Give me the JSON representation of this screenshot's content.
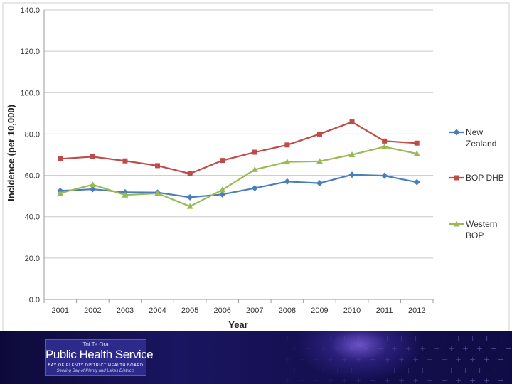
{
  "chart_data": {
    "type": "line",
    "title": "",
    "xlabel": "Year",
    "ylabel": "Incidence (per 10,000)",
    "categories": [
      "2001",
      "2002",
      "2003",
      "2004",
      "2005",
      "2006",
      "2007",
      "2008",
      "2009",
      "2010",
      "2011",
      "2012"
    ],
    "y_ticks": [
      "0.0",
      "20.0",
      "40.0",
      "60.0",
      "80.0",
      "100.0",
      "120.0",
      "140.0"
    ],
    "ylim": [
      0,
      140
    ],
    "grid": true,
    "legend_position": "right",
    "series": [
      {
        "name": "New Zealand",
        "legend_lines": [
          "New",
          "Zealand"
        ],
        "color": "#4a7ebb",
        "marker": "diamond",
        "values": [
          52.5,
          53.3,
          51.8,
          51.7,
          49.4,
          50.8,
          53.8,
          57.0,
          56.2,
          60.3,
          59.8,
          56.7
        ]
      },
      {
        "name": "BOP DHB",
        "legend_lines": [
          "BOP DHB"
        ],
        "color": "#be4b48",
        "marker": "square",
        "values": [
          68.0,
          69.0,
          67.0,
          64.7,
          60.8,
          67.2,
          71.2,
          74.7,
          80.0,
          85.8,
          76.6,
          75.6
        ]
      },
      {
        "name": "Western BOP",
        "legend_lines": [
          "Western",
          "BOP"
        ],
        "color": "#98b954",
        "marker": "triangle",
        "values": [
          51.4,
          55.5,
          50.5,
          51.3,
          45.0,
          53.0,
          62.8,
          66.5,
          66.8,
          70.0,
          73.8,
          70.5
        ]
      }
    ]
  },
  "footer": {
    "logo_top": "Toi Te Ora",
    "logo_main": "Public Health Service",
    "logo_sub": "BAY OF PLENTY DISTRICT HEALTH BOARD",
    "logo_tagline": "Serving Bay of Plenty and Lakes Districts"
  }
}
